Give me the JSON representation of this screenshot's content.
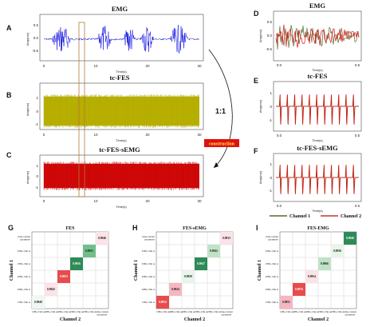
{
  "figure": {
    "panels": {
      "A": {
        "letter": "A",
        "title": "EMG",
        "ylabel": "Amp(mv)",
        "xlabel": "Time(s)",
        "yticks": [
          "0.5",
          "0.0",
          "-0.5"
        ],
        "xticks": [
          "0",
          "10",
          "20",
          "30"
        ]
      },
      "B": {
        "letter": "B",
        "title": "tc-FES",
        "ylabel": "Amp(mv)",
        "xlabel": "Time(s)",
        "yticks": [
          "1",
          "0",
          "-1"
        ],
        "xticks": [
          "0",
          "10",
          "20",
          "30"
        ]
      },
      "C": {
        "letter": "C",
        "title": "tc-FES-sEMG",
        "ylabel": "Amp(mv)",
        "xlabel": "Time(s)",
        "yticks": [
          "1",
          "0",
          "-1"
        ],
        "xticks": [
          "0",
          "10",
          "20",
          "30"
        ]
      },
      "D": {
        "letter": "D",
        "title": "EMG",
        "ylabel": "Amp(mv)",
        "xlabel": "Time(s)",
        "yticks": [
          "0.5",
          "0.0",
          "-0.5"
        ],
        "xticks": [
          "0.0",
          "0.5"
        ]
      },
      "E": {
        "letter": "E",
        "title": "tc-FES",
        "ylabel": "Amp(mv)",
        "xlabel": "Time(s)",
        "yticks": [
          "1",
          "0",
          "-1"
        ],
        "xticks": [
          "0.0",
          "0.5"
        ]
      },
      "F": {
        "letter": "F",
        "title": "tc-FES-sEMG",
        "ylabel": "Amp(mv)",
        "xlabel": "Time(s)",
        "yticks": [
          "1",
          "0",
          "-1"
        ],
        "xticks": [
          "0.0",
          "0.5"
        ]
      }
    },
    "ratio_label": "1:1",
    "construction_label": "construction",
    "legend": [
      {
        "label": "Channel 1",
        "color": "#556b2f"
      },
      {
        "label": "Channel 2",
        "color": "#c0392b"
      }
    ],
    "matrices": {
      "G": {
        "letter": "G",
        "title": "FES",
        "xlabel": "Channel 2",
        "ylabel": "Channel 1",
        "rows": [
          "time-variant parameter",
          "25Hz,13m A",
          "25Hz,13m A",
          "20Hz,13m A",
          "20Hz,13m A",
          "15Hz,13m A"
        ],
        "cols": [
          "15Hz,13m A",
          "20Hz,13m A",
          "20Hz,13m A",
          "25Hz,13m A",
          "25Hz,13m A",
          "time-variant parameter"
        ],
        "values": [
          "0.9949",
          "0.9945",
          "0.9953",
          "0.9956",
          "0.9951",
          "0.9946"
        ]
      },
      "H": {
        "letter": "H",
        "title": "FES-sEMG",
        "xlabel": "Channel 2",
        "ylabel": "Channel 1",
        "rows": [
          "time-variant parameter",
          "25Hz,13m A",
          "25Hz,13m A",
          "20Hz,13m A",
          "20Hz,13m A",
          "15Hz,13m A"
        ],
        "cols": [
          "15Hz,13m A",
          "20Hz,13m A",
          "20Hz,13m A",
          "25Hz,13m A",
          "25Hz,13m A",
          "time-variant parameter"
        ],
        "values": [
          "0.9912",
          "0.9924",
          "0.9929",
          "0.9947",
          "0.9942",
          "0.9933"
        ]
      },
      "I": {
        "letter": "I",
        "title": "FES-EMG",
        "xlabel": "Channel 2",
        "ylabel": "Channel 1",
        "rows": [
          "time-variant parameter",
          "25Hz,13m A",
          "25Hz,13m A",
          "20Hz,13m A",
          "20Hz,13m A",
          "15Hz,13m A"
        ],
        "cols": [
          "15Hz,13m A",
          "20Hz,13m A",
          "20Hz,13m A",
          "25Hz,13m A",
          "25Hz,13m A",
          "time-variant parameter"
        ],
        "values": [
          "0.9851",
          "0.9876",
          "0.9954",
          "0.9966",
          "0.9956",
          "0.9946"
        ]
      }
    },
    "colors": {
      "emg_blue": "#1010e0",
      "fes_olive": "#c8c000",
      "fesemg_red": "#e01010",
      "ch1": "#556b2f",
      "ch2": "#c0392b"
    }
  }
}
